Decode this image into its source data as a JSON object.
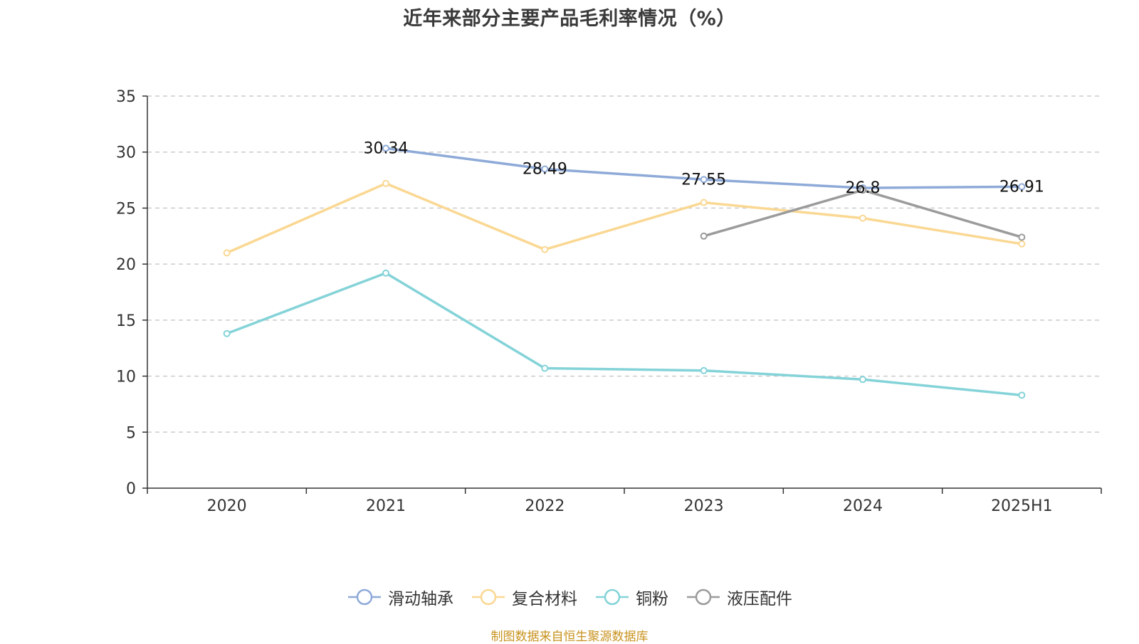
{
  "chart_data": {
    "type": "line",
    "title": "近年来部分主要产品毛利率情况（%）",
    "categories": [
      "2020",
      "2021",
      "2022",
      "2023",
      "2024",
      "2025H1"
    ],
    "ylim": [
      0,
      35
    ],
    "yticks": [
      0,
      5,
      10,
      15,
      20,
      25,
      30,
      35
    ],
    "grid": true,
    "grid_style": "dashed",
    "legend_position": "bottom-center",
    "series": [
      {
        "name": "滑动轴承",
        "color": "#8eaad8",
        "values": [
          null,
          30.34,
          28.49,
          27.55,
          26.8,
          26.91
        ],
        "labels": [
          "",
          "30.34",
          "28.49",
          "27.55",
          "26.8",
          "26.91"
        ]
      },
      {
        "name": "复合材料",
        "color": "#fad893",
        "values": [
          21.0,
          27.2,
          21.3,
          25.5,
          24.1,
          21.8
        ]
      },
      {
        "name": "铜粉",
        "color": "#84d3d8",
        "values": [
          13.8,
          19.2,
          10.7,
          10.5,
          9.7,
          8.3
        ]
      },
      {
        "name": "液压配件",
        "color": "#9b9b9b",
        "values": [
          null,
          null,
          null,
          22.5,
          26.6,
          22.4
        ]
      }
    ]
  },
  "source_note": "制图数据来自恒生聚源数据库"
}
